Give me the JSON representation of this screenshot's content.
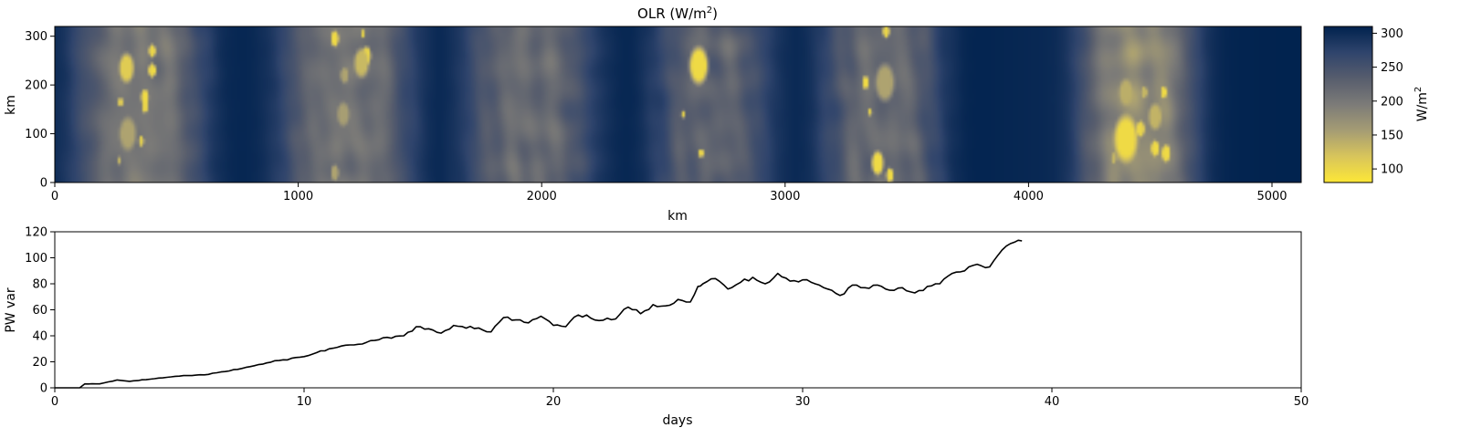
{
  "chart_data": [
    {
      "type": "heatmap",
      "title_main": "OLR (W/m",
      "title_sup": "2",
      "title_close": ")",
      "xlabel": "km",
      "ylabel": "km",
      "xlim": [
        0,
        5120
      ],
      "ylim": [
        0,
        320
      ],
      "xticks": [
        0,
        1000,
        2000,
        3000,
        4000,
        5000
      ],
      "yticks": [
        0,
        100,
        200,
        300
      ],
      "colormap": "cividis_r",
      "colorbar": {
        "label_main": "W/m",
        "label_sup": "2",
        "range": [
          80,
          310
        ],
        "ticks": [
          100,
          150,
          200,
          250,
          300
        ],
        "colors": [
          "#fde737",
          "#d8c55b",
          "#a59c74",
          "#7c7b78",
          "#575d6d",
          "#2f446c",
          "#00224e"
        ]
      },
      "clear_sky_value": 305,
      "cloud_bands": [
        {
          "x_center": 350,
          "x_halfwidth": 260,
          "mean_value": 200
        },
        {
          "x_center": 1200,
          "x_halfwidth": 260,
          "mean_value": 205
        },
        {
          "x_center": 1950,
          "x_halfwidth": 260,
          "mean_value": 215
        },
        {
          "x_center": 2700,
          "x_halfwidth": 230,
          "mean_value": 225
        },
        {
          "x_center": 3400,
          "x_halfwidth": 240,
          "mean_value": 215
        },
        {
          "x_center": 4450,
          "x_halfwidth": 230,
          "mean_value": 175
        }
      ],
      "deep_convective_cells": [
        {
          "x": 295,
          "y": 235,
          "r": 22,
          "value": 110
        },
        {
          "x": 400,
          "y": 270,
          "r": 10,
          "value": 95
        },
        {
          "x": 400,
          "y": 230,
          "r": 11,
          "value": 95
        },
        {
          "x": 370,
          "y": 175,
          "r": 12,
          "value": 95
        },
        {
          "x": 370,
          "y": 155,
          "r": 9,
          "value": 100
        },
        {
          "x": 270,
          "y": 165,
          "r": 7,
          "value": 110
        },
        {
          "x": 300,
          "y": 100,
          "r": 25,
          "value": 150
        },
        {
          "x": 355,
          "y": 85,
          "r": 8,
          "value": 100
        },
        {
          "x": 265,
          "y": 45,
          "r": 6,
          "value": 130
        },
        {
          "x": 1150,
          "y": 295,
          "r": 12,
          "value": 95
        },
        {
          "x": 1265,
          "y": 305,
          "r": 6,
          "value": 95
        },
        {
          "x": 1280,
          "y": 260,
          "r": 14,
          "value": 95
        },
        {
          "x": 1260,
          "y": 245,
          "r": 22,
          "value": 130
        },
        {
          "x": 1190,
          "y": 220,
          "r": 12,
          "value": 150
        },
        {
          "x": 1185,
          "y": 140,
          "r": 18,
          "value": 155
        },
        {
          "x": 1150,
          "y": 20,
          "r": 12,
          "value": 150
        },
        {
          "x": 2645,
          "y": 240,
          "r": 28,
          "value": 95
        },
        {
          "x": 2580,
          "y": 140,
          "r": 6,
          "value": 100
        },
        {
          "x": 2655,
          "y": 60,
          "r": 7,
          "value": 100
        },
        {
          "x": 3415,
          "y": 310,
          "r": 10,
          "value": 95
        },
        {
          "x": 3330,
          "y": 205,
          "r": 10,
          "value": 95
        },
        {
          "x": 3410,
          "y": 205,
          "r": 28,
          "value": 150
        },
        {
          "x": 3350,
          "y": 145,
          "r": 6,
          "value": 100
        },
        {
          "x": 3380,
          "y": 40,
          "r": 18,
          "value": 95
        },
        {
          "x": 3430,
          "y": 15,
          "r": 11,
          "value": 95
        },
        {
          "x": 4400,
          "y": 185,
          "r": 20,
          "value": 140
        },
        {
          "x": 4475,
          "y": 185,
          "r": 9,
          "value": 130
        },
        {
          "x": 4520,
          "y": 135,
          "r": 20,
          "value": 135
        },
        {
          "x": 4555,
          "y": 185,
          "r": 9,
          "value": 95
        },
        {
          "x": 4400,
          "y": 90,
          "r": 35,
          "value": 95
        },
        {
          "x": 4460,
          "y": 110,
          "r": 12,
          "value": 100
        },
        {
          "x": 4520,
          "y": 70,
          "r": 12,
          "value": 95
        },
        {
          "x": 4565,
          "y": 60,
          "r": 13,
          "value": 95
        },
        {
          "x": 4350,
          "y": 50,
          "r": 8,
          "value": 130
        }
      ]
    },
    {
      "type": "line",
      "xlabel": "days",
      "ylabel": "PW var",
      "xlim": [
        0,
        50
      ],
      "ylim": [
        0,
        120
      ],
      "xticks": [
        0,
        10,
        20,
        30,
        40,
        50
      ],
      "yticks": [
        0,
        20,
        40,
        60,
        80,
        100,
        120
      ],
      "line_color": "#000000",
      "series": [
        {
          "x": [
            0,
            1,
            1.2,
            1.8,
            2.5,
            3,
            4,
            5,
            6,
            7,
            8,
            9,
            10,
            11,
            12,
            13,
            14,
            14.5,
            15.5,
            16,
            17,
            17.5,
            18,
            19,
            19.5,
            20,
            20.5,
            21,
            22,
            22.5,
            23,
            23.5,
            24,
            24.5,
            25,
            25.5,
            25.8,
            26,
            26.5,
            27,
            27.5,
            28,
            28.5,
            29,
            29.5,
            30,
            30.5,
            31,
            31.5,
            32,
            32.5,
            33,
            33.5,
            34,
            34.5,
            35,
            35.5,
            36,
            36.5,
            37,
            37.5,
            38,
            38.5,
            38.8
          ],
          "y": [
            0,
            0,
            3,
            3,
            6,
            5,
            7,
            9,
            10,
            13,
            17,
            21,
            24,
            30,
            33,
            37,
            40,
            47,
            42,
            48,
            46,
            43,
            54,
            50,
            55,
            48,
            47,
            56,
            52,
            53,
            62,
            57,
            64,
            63,
            68,
            66,
            78,
            80,
            84,
            76,
            81,
            85,
            80,
            88,
            82,
            83,
            80,
            76,
            71,
            79,
            77,
            79,
            75,
            77,
            73,
            78,
            80,
            88,
            90,
            95,
            93,
            106,
            112,
            113
          ]
        }
      ]
    }
  ]
}
